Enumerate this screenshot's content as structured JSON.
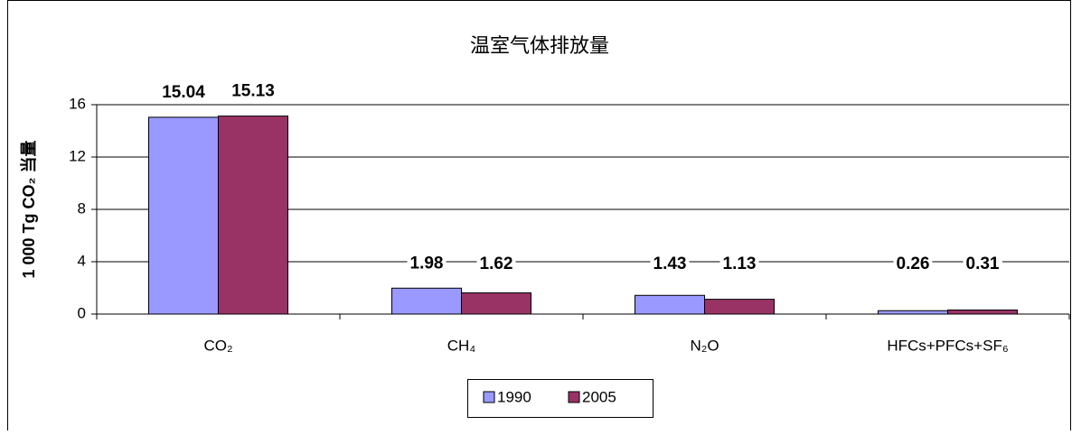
{
  "chart_data": {
    "type": "bar",
    "title": "温室气体排放量",
    "y_label": "1 000 Tg CO₂ 当量",
    "categories": [
      "CO₂",
      "CH₄",
      "N₂O",
      "HFCs+PFCs+SF₆"
    ],
    "series": [
      {
        "name": "1990",
        "color": "#9999ff",
        "values": [
          15.04,
          1.98,
          1.43,
          0.26
        ]
      },
      {
        "name": "2005",
        "color": "#993366",
        "values": [
          15.13,
          1.62,
          1.13,
          0.31
        ]
      }
    ],
    "ylim": [
      0,
      16
    ],
    "yticks": [
      0,
      4,
      8,
      12,
      16
    ],
    "grid": true,
    "legend": "bottom"
  }
}
